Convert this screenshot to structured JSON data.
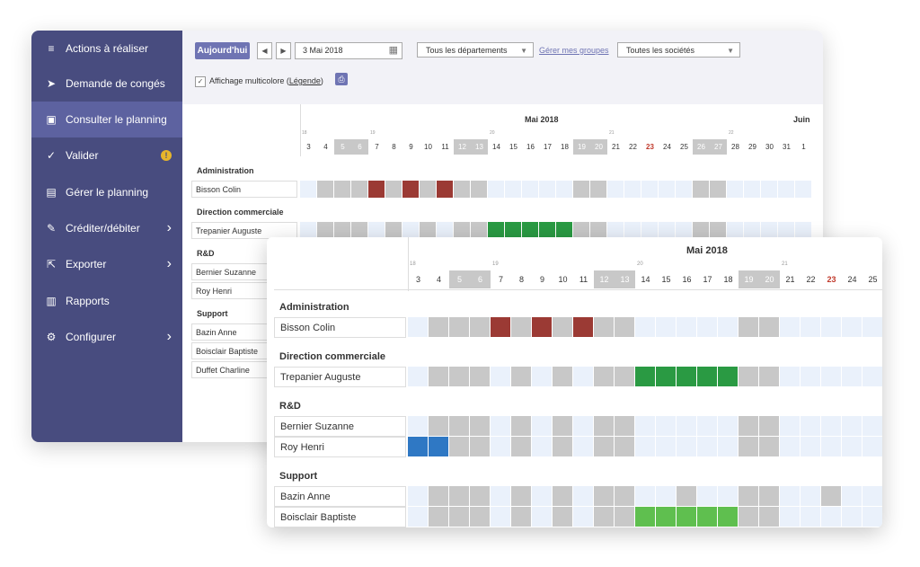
{
  "sidebar": {
    "items": [
      {
        "label": "Actions à réaliser",
        "icon": "list-icon",
        "glyph": "≡",
        "active": false,
        "chevron": false,
        "badge": ""
      },
      {
        "label": "Demande de congés",
        "icon": "send-icon",
        "glyph": "➤",
        "active": false,
        "chevron": false,
        "badge": ""
      },
      {
        "label": "Consulter le planning",
        "icon": "calendar-icon",
        "glyph": "▣",
        "active": true,
        "chevron": false,
        "badge": ""
      },
      {
        "label": "Valider",
        "icon": "check-icon",
        "glyph": "✓",
        "active": false,
        "chevron": false,
        "badge": "!"
      },
      {
        "label": "Gérer le planning",
        "icon": "calendar-edit-icon",
        "glyph": "▤",
        "active": false,
        "chevron": false,
        "badge": ""
      },
      {
        "label": "Créditer/débiter",
        "icon": "edit-box-icon",
        "glyph": "✎",
        "active": false,
        "chevron": true,
        "badge": ""
      },
      {
        "label": "Exporter",
        "icon": "export-icon",
        "glyph": "⇱",
        "active": false,
        "chevron": true,
        "badge": ""
      },
      {
        "label": "Rapports",
        "icon": "bar-chart-icon",
        "glyph": "▥",
        "active": false,
        "chevron": false,
        "badge": ""
      },
      {
        "label": "Configurer",
        "icon": "gear-icon",
        "glyph": "⚙",
        "active": false,
        "chevron": true,
        "badge": ""
      }
    ]
  },
  "toolbar": {
    "today_label": "Aujourd'hui",
    "date_value": "3 Mai 2018",
    "departments_select": "Tous les départements",
    "manage_groups_link": "Gérer mes groupes",
    "companies_select": "Toutes les sociétés",
    "multicolor_label": "Affichage multicolore (",
    "legend_link": "Légende",
    "multicolor_close": ")"
  },
  "planning": {
    "month_label": "Mai 2018",
    "next_month_label": "Juin",
    "days": [
      "3",
      "4",
      "5",
      "6",
      "7",
      "8",
      "9",
      "10",
      "11",
      "12",
      "13",
      "14",
      "15",
      "16",
      "17",
      "18",
      "19",
      "20",
      "21",
      "22",
      "23",
      "24",
      "25",
      "26",
      "27",
      "28",
      "29",
      "30",
      "31",
      "1"
    ],
    "weekends": [
      2,
      3,
      9,
      10,
      16,
      17,
      23,
      24
    ],
    "holidays": [
      20
    ],
    "week_numbers": [
      {
        "label": "18",
        "day": 0
      },
      {
        "label": "19",
        "day": 4
      },
      {
        "label": "20",
        "day": 11
      },
      {
        "label": "21",
        "day": 18
      },
      {
        "label": "22",
        "day": 25
      }
    ],
    "groups": [
      {
        "name": "Administration",
        "people": [
          {
            "name": "Bisson Colin",
            "absences": {
              "4": "#9b3a34",
              "6": "#9b3a34",
              "8": "#9b3a34"
            },
            "grey": [
              1,
              3,
              5,
              7
            ]
          }
        ]
      },
      {
        "name": "Direction commerciale",
        "people": [
          {
            "name": "Trepanier Auguste",
            "absences": {
              "11": "#2a9a43",
              "12": "#2a9a43",
              "13": "#2a9a43",
              "14": "#2a9a43",
              "15": "#2a9a43"
            },
            "grey": [
              1,
              3,
              5,
              7
            ]
          }
        ]
      },
      {
        "name": "R&D",
        "people": [
          {
            "name": "Bernier Suzanne",
            "absences": {},
            "grey": [
              1,
              3,
              5,
              7
            ]
          },
          {
            "name": "Roy Henri",
            "absences": {
              "0": "#2f78c4",
              "1": "#2f78c4"
            },
            "grey": [
              1,
              3,
              5,
              7
            ]
          }
        ]
      },
      {
        "name": "Support",
        "people": [
          {
            "name": "Bazin Anne",
            "absences": {},
            "grey": [
              1,
              3,
              5,
              7,
              13,
              20
            ]
          },
          {
            "name": "Boisclair Baptiste",
            "absences": {
              "11": "#5fbf4f",
              "12": "#5fbf4f",
              "13": "#5fbf4f",
              "14": "#5fbf4f",
              "15": "#5fbf4f"
            },
            "grey": [
              1,
              3,
              5,
              7
            ]
          },
          {
            "name": "Duffet Charline",
            "absences": {},
            "grey": [
              1,
              3,
              5,
              7
            ]
          }
        ]
      }
    ]
  },
  "colors": {
    "weekend": "#c8c8c8",
    "workday": "#eaf1fb",
    "holiday_text": "#c0392b",
    "accent": "#6f74b3"
  }
}
